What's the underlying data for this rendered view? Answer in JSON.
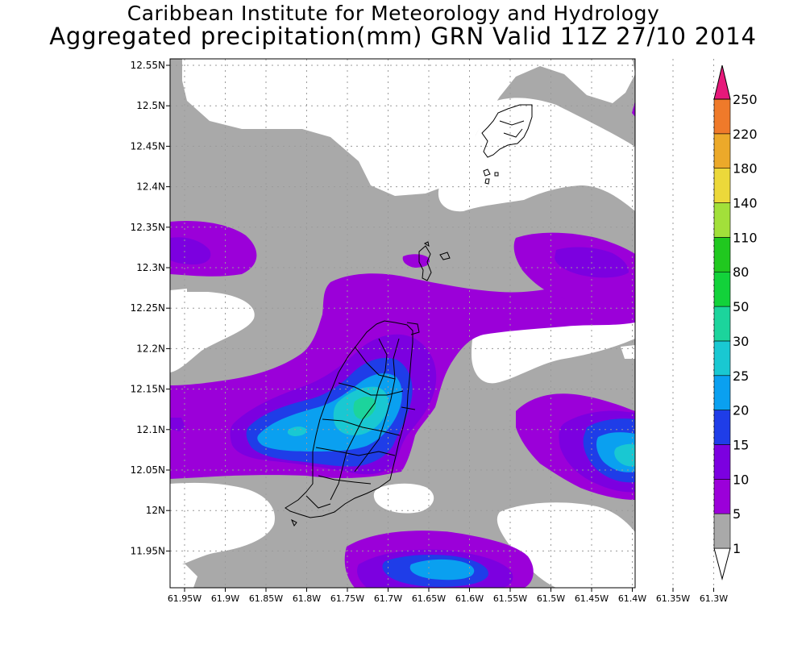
{
  "header": {
    "title": "Caribbean Institute for Meteorology and Hydrology",
    "subtitle": "Aggregated precipitation(mm) GRN Valid 11Z 27/10 2014"
  },
  "map": {
    "lat_labels": [
      "12.55N",
      "12.5N",
      "12.45N",
      "12.4N",
      "12.35N",
      "12.3N",
      "12.25N",
      "12.2N",
      "12.15N",
      "12.1N",
      "12.05N",
      "12N",
      "11.95N"
    ],
    "lon_labels": [
      "61.95W",
      "61.9W",
      "61.85W",
      "61.8W",
      "61.75W",
      "61.7W",
      "61.65W",
      "61.6W",
      "61.55W",
      "61.5W",
      "61.45W",
      "61.4W",
      "61.35W",
      "61.3W"
    ],
    "lon_range": [
      -61.95,
      -61.27
    ],
    "lat_range": [
      11.91,
      12.565
    ]
  },
  "colorbar": {
    "labels": [
      "1",
      "5",
      "10",
      "15",
      "20",
      "25",
      "30",
      "50",
      "80",
      "110",
      "140",
      "180",
      "220",
      "250"
    ],
    "colors": [
      "#a9a9a9",
      "#9b00d9",
      "#7c00e0",
      "#1f3de8",
      "#0aa0f0",
      "#19c8d2",
      "#1cd49c",
      "#12d23a",
      "#20c81f",
      "#a2e03a",
      "#ecd83a",
      "#eca92a",
      "#ef7a2a",
      "#ef3a3a",
      "#e6197a"
    ]
  },
  "colors": {
    "white": "#ffffff",
    "gray": "#a9a9a9",
    "purple": "#9b00d9",
    "violet": "#7c00e0",
    "blue": "#1f3de8",
    "lightblue": "#0aa0f0",
    "cyan": "#19c8d2",
    "teal": "#1cd49c"
  }
}
